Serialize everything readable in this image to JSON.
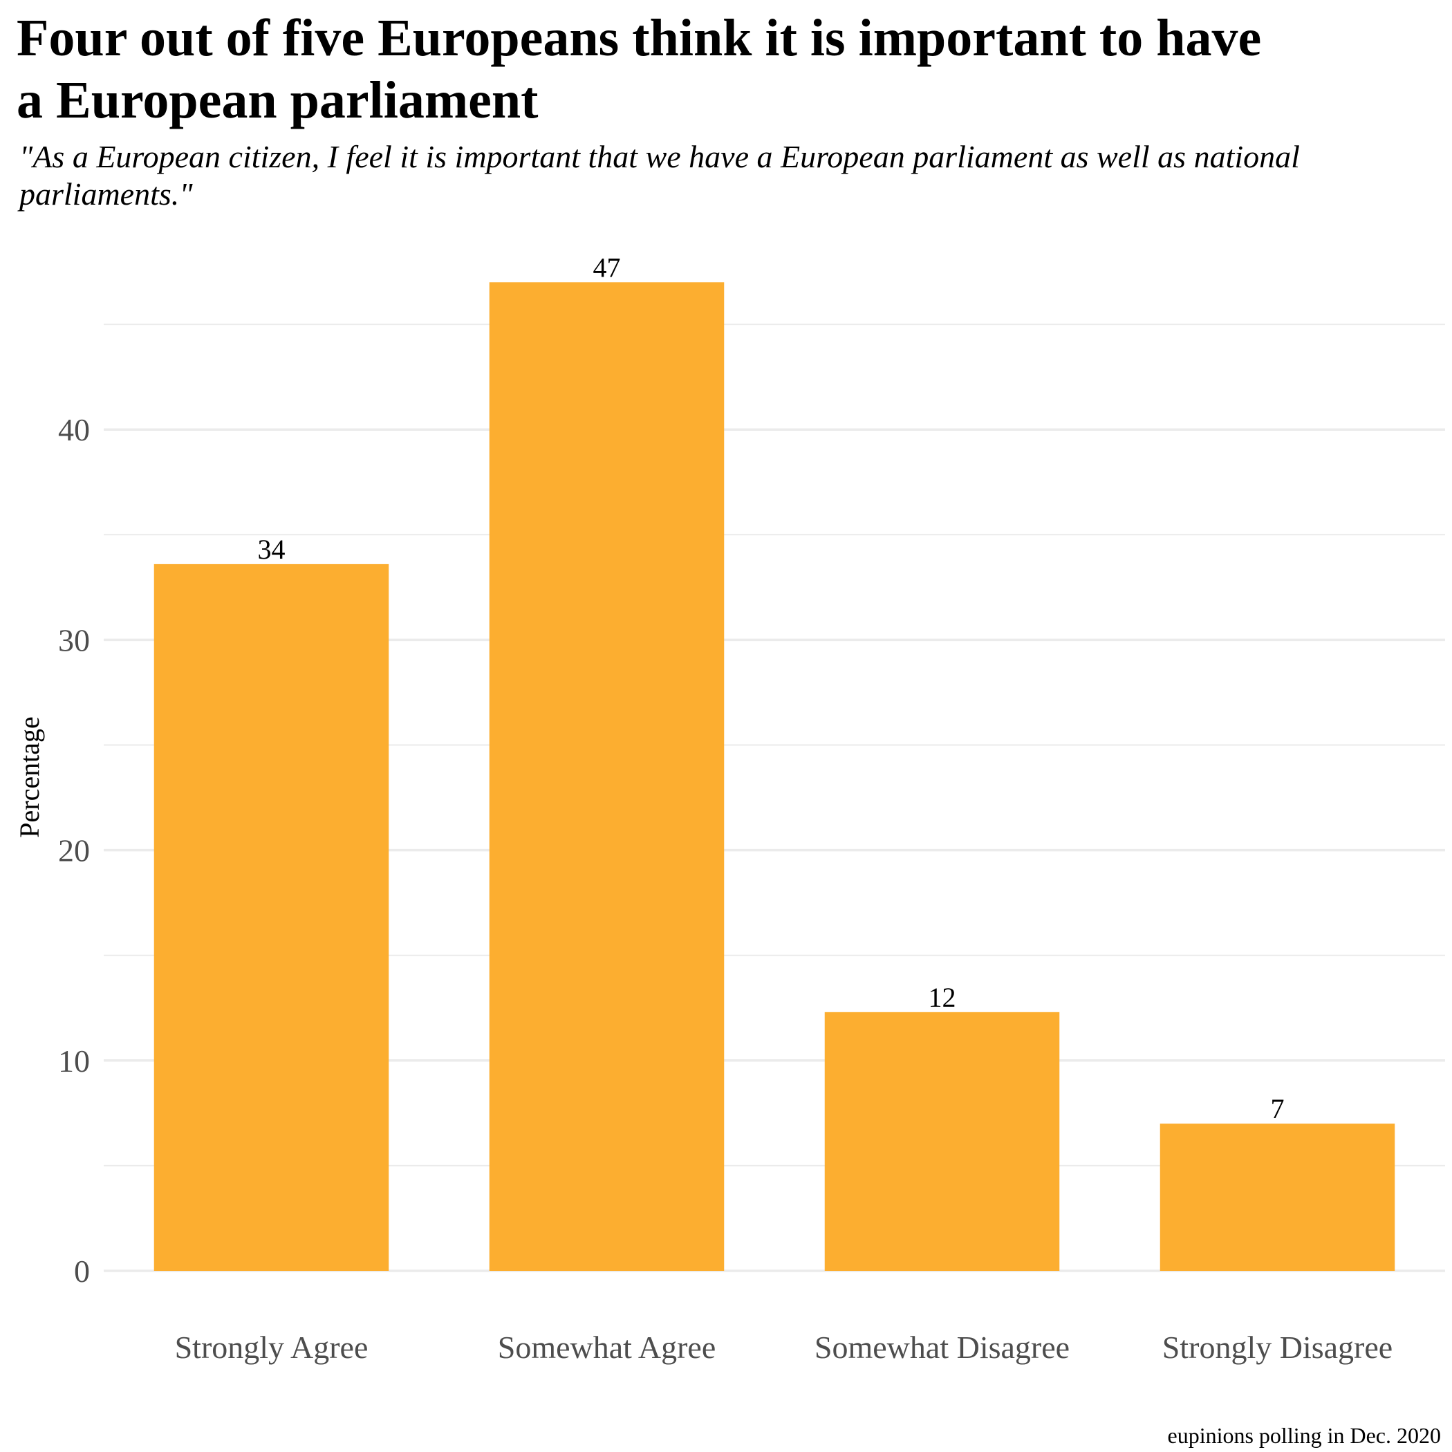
{
  "chart_data": {
    "type": "bar",
    "title": "Four out of five Europeans think it is important to have\n a European parliament",
    "subtitle": "\"As a European citizen, I feel it is important that we have a European parliament as well as national\n parliaments.\"",
    "caption": "eupinions polling in Dec. 2020",
    "xlabel": "",
    "ylabel": "Percentage",
    "categories": [
      "Strongly Agree",
      "Somewhat Agree",
      "Somewhat Disagree",
      "Strongly Disagree"
    ],
    "values": [
      33.6,
      47.0,
      12.3,
      7.0
    ],
    "data_labels": [
      "34",
      "47",
      "12",
      "7"
    ],
    "y_ticks": [
      0,
      10,
      20,
      30,
      40
    ],
    "ylim": [
      0,
      47
    ],
    "grid": true,
    "bar_color": "#FCAE30",
    "grid_color": "#EBEBEB"
  }
}
